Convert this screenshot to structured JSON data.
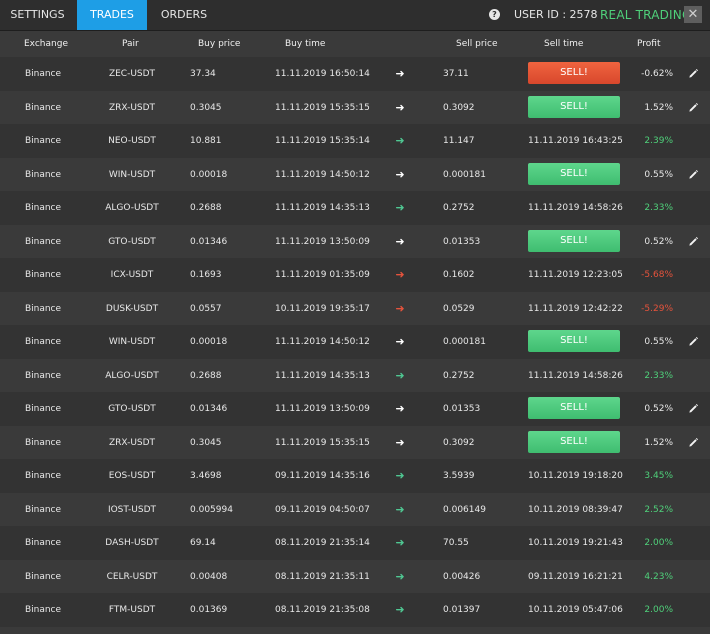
{
  "tabs": [
    {
      "label": "SETTINGS"
    },
    {
      "label": "TRADES"
    },
    {
      "label": "ORDERS"
    }
  ],
  "header": {
    "user_id": "USER ID : 2578",
    "mode": "REAL TRADING",
    "help_icon": "?",
    "close_icon": "✕"
  },
  "columns": {
    "exchange": "Exchange",
    "pair": "Pair",
    "buy_price": "Buy price",
    "buy_time": "Buy time",
    "sell_price": "Sell price",
    "sell_time": "Sell time",
    "profit": "Profit"
  },
  "sell_label": "SELL!",
  "colors": {
    "accent": "#1e9ee6",
    "profit_positive": "#4fd07a",
    "profit_negative": "#e5533c"
  },
  "trades": [
    {
      "exchange": "Binance",
      "pair": "ZEC-USDT",
      "buy_price": "37.34",
      "buy_time": "11.11.2019 16:50:14",
      "sell_price": "37.11",
      "sell_time": "",
      "profit": "-0.62%",
      "open": true,
      "button": "red",
      "arrow": "white",
      "profit_color": "white"
    },
    {
      "exchange": "Binance",
      "pair": "ZRX-USDT",
      "buy_price": "0.3045",
      "buy_time": "11.11.2019 15:35:15",
      "sell_price": "0.3092",
      "sell_time": "",
      "profit": "1.52%",
      "open": true,
      "button": "green",
      "arrow": "white",
      "profit_color": "white"
    },
    {
      "exchange": "Binance",
      "pair": "NEO-USDT",
      "buy_price": "10.881",
      "buy_time": "11.11.2019 15:35:14",
      "sell_price": "11.147",
      "sell_time": "11.11.2019 16:43:25",
      "profit": "2.39%",
      "open": false,
      "arrow": "green",
      "profit_color": "green"
    },
    {
      "exchange": "Binance",
      "pair": "WIN-USDT",
      "buy_price": "0.00018",
      "buy_time": "11.11.2019 14:50:12",
      "sell_price": "0.000181",
      "sell_time": "",
      "profit": "0.55%",
      "open": true,
      "button": "green",
      "arrow": "white",
      "profit_color": "white"
    },
    {
      "exchange": "Binance",
      "pair": "ALGO-USDT",
      "buy_price": "0.2688",
      "buy_time": "11.11.2019 14:35:13",
      "sell_price": "0.2752",
      "sell_time": "11.11.2019 14:58:26",
      "profit": "2.33%",
      "open": false,
      "arrow": "green",
      "profit_color": "green"
    },
    {
      "exchange": "Binance",
      "pair": "GTO-USDT",
      "buy_price": "0.01346",
      "buy_time": "11.11.2019 13:50:09",
      "sell_price": "0.01353",
      "sell_time": "",
      "profit": "0.52%",
      "open": true,
      "button": "green",
      "arrow": "white",
      "profit_color": "white"
    },
    {
      "exchange": "Binance",
      "pair": "ICX-USDT",
      "buy_price": "0.1693",
      "buy_time": "11.11.2019 01:35:09",
      "sell_price": "0.1602",
      "sell_time": "11.11.2019 12:23:05",
      "profit": "-5.68%",
      "open": false,
      "arrow": "red",
      "profit_color": "red"
    },
    {
      "exchange": "Binance",
      "pair": "DUSK-USDT",
      "buy_price": "0.0557",
      "buy_time": "10.11.2019 19:35:17",
      "sell_price": "0.0529",
      "sell_time": "11.11.2019 12:42:22",
      "profit": "-5.29%",
      "open": false,
      "arrow": "red",
      "profit_color": "red"
    },
    {
      "exchange": "Binance",
      "pair": "WIN-USDT",
      "buy_price": "0.00018",
      "buy_time": "11.11.2019 14:50:12",
      "sell_price": "0.000181",
      "sell_time": "",
      "profit": "0.55%",
      "open": true,
      "button": "green",
      "arrow": "white",
      "profit_color": "white"
    },
    {
      "exchange": "Binance",
      "pair": "ALGO-USDT",
      "buy_price": "0.2688",
      "buy_time": "11.11.2019 14:35:13",
      "sell_price": "0.2752",
      "sell_time": "11.11.2019 14:58:26",
      "profit": "2.33%",
      "open": false,
      "arrow": "green",
      "profit_color": "green"
    },
    {
      "exchange": "Binance",
      "pair": "GTO-USDT",
      "buy_price": "0.01346",
      "buy_time": "11.11.2019 13:50:09",
      "sell_price": "0.01353",
      "sell_time": "",
      "profit": "0.52%",
      "open": true,
      "button": "green",
      "arrow": "white",
      "profit_color": "white"
    },
    {
      "exchange": "Binance",
      "pair": "ZRX-USDT",
      "buy_price": "0.3045",
      "buy_time": "11.11.2019 15:35:15",
      "sell_price": "0.3092",
      "sell_time": "",
      "profit": "1.52%",
      "open": true,
      "button": "green",
      "arrow": "white",
      "profit_color": "white"
    },
    {
      "exchange": "Binance",
      "pair": "EOS-USDT",
      "buy_price": "3.4698",
      "buy_time": "09.11.2019 14:35:16",
      "sell_price": "3.5939",
      "sell_time": "10.11.2019 19:18:20",
      "profit": "3.45%",
      "open": false,
      "arrow": "green",
      "profit_color": "green"
    },
    {
      "exchange": "Binance",
      "pair": "IOST-USDT",
      "buy_price": "0.005994",
      "buy_time": "09.11.2019 04:50:07",
      "sell_price": "0.006149",
      "sell_time": "10.11.2019 08:39:47",
      "profit": "2.52%",
      "open": false,
      "arrow": "green",
      "profit_color": "green"
    },
    {
      "exchange": "Binance",
      "pair": "DASH-USDT",
      "buy_price": "69.14",
      "buy_time": "08.11.2019 21:35:14",
      "sell_price": "70.55",
      "sell_time": "10.11.2019 19:21:43",
      "profit": "2.00%",
      "open": false,
      "arrow": "green",
      "profit_color": "green"
    },
    {
      "exchange": "Binance",
      "pair": "CELR-USDT",
      "buy_price": "0.00408",
      "buy_time": "08.11.2019 21:35:11",
      "sell_price": "0.00426",
      "sell_time": "09.11.2019 16:21:21",
      "profit": "4.23%",
      "open": false,
      "arrow": "green",
      "profit_color": "green"
    },
    {
      "exchange": "Binance",
      "pair": "FTM-USDT",
      "buy_price": "0.01369",
      "buy_time": "08.11.2019 21:35:08",
      "sell_price": "0.01397",
      "sell_time": "10.11.2019 05:47:06",
      "profit": "2.00%",
      "open": false,
      "arrow": "green",
      "profit_color": "green"
    }
  ]
}
